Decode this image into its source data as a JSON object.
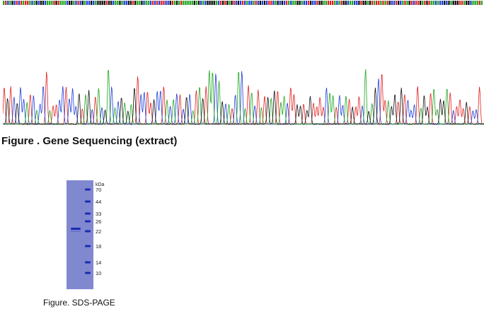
{
  "sequencing": {
    "caption": "Figure . Gene Sequencing (extract)",
    "base_colors": {
      "A": "#1fa51f",
      "C": "#1f3fd8",
      "G": "#111111",
      "T": "#e02020"
    }
  },
  "gel": {
    "caption": "Figure. SDS-PAGE",
    "unit_label": "kDa",
    "marker_labels": [
      "70",
      "44",
      "33",
      "26",
      "22",
      "18",
      "14",
      "10"
    ],
    "gel_color": "#8088d0",
    "band_color": "#1c2bb0"
  }
}
